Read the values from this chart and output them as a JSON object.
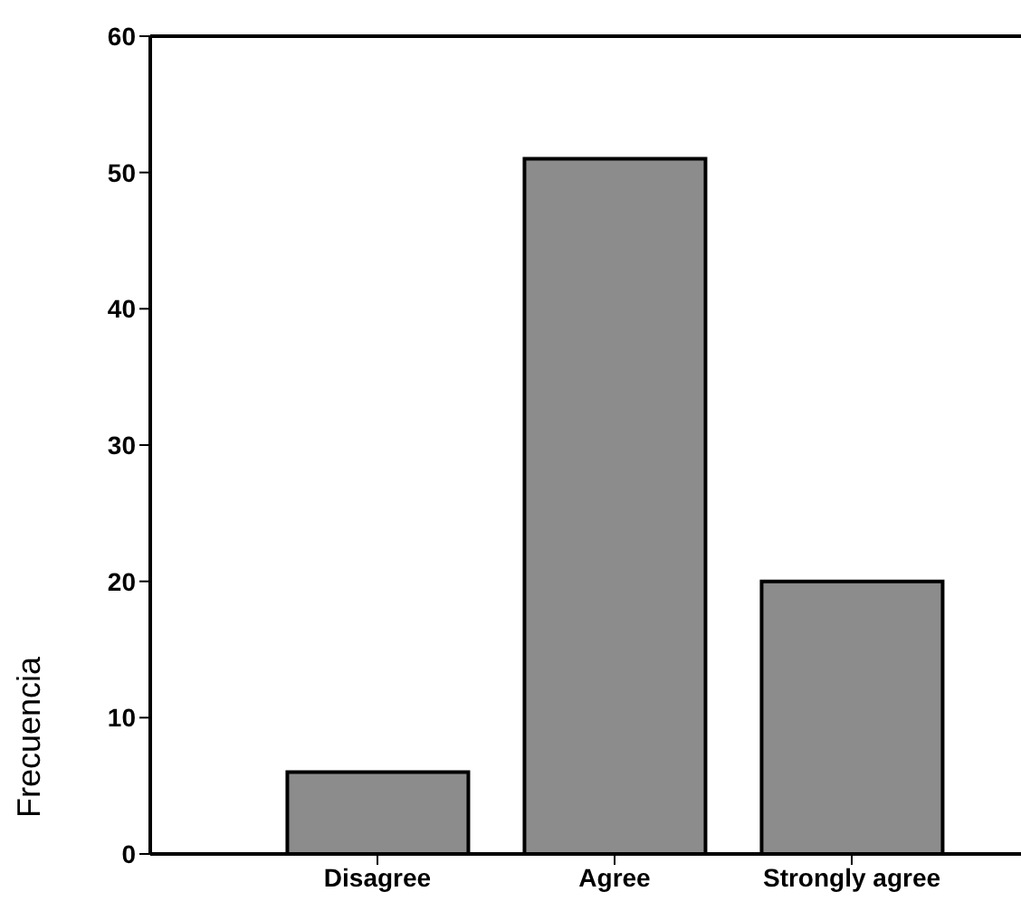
{
  "chart_data": {
    "type": "bar",
    "ylabel": "Frecuencia",
    "categories": [
      "Disagree",
      "Agree",
      "Strongly agree"
    ],
    "values": [
      6,
      51,
      20
    ],
    "color": "#8c8c8c",
    "ylim": [
      0,
      60
    ],
    "yticks": [
      0,
      10,
      20,
      30,
      40,
      50,
      60
    ],
    "grid": false
  }
}
